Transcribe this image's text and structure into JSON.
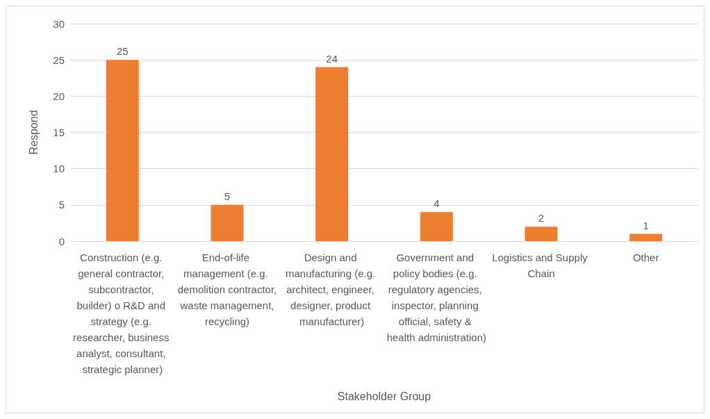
{
  "chart_data": {
    "type": "bar",
    "xlabel": "Stakeholder Group",
    "ylabel": "Respond",
    "categories": [
      "Construction (e.g. general contractor, subcontractor, builder) o R&D and strategy (e.g. researcher, business analyst, consultant, strategic planner)",
      "End-of-life management (e.g. demolition contractor, waste management, recycling)",
      "Design and manufacturing (e.g. architect, engineer, designer, product manufacturer)",
      "Government and policy bodies (e.g. regulatory agencies, inspector, planning official, safety & health administration)",
      "Logistics and Supply Chain",
      "Other"
    ],
    "values": [
      25,
      5,
      24,
      4,
      2,
      1
    ],
    "color": "#ed7d31",
    "ylim": [
      0,
      30
    ],
    "yticks": [
      0,
      5,
      10,
      15,
      20,
      25,
      30
    ],
    "grid": "y",
    "data_labels": true
  }
}
